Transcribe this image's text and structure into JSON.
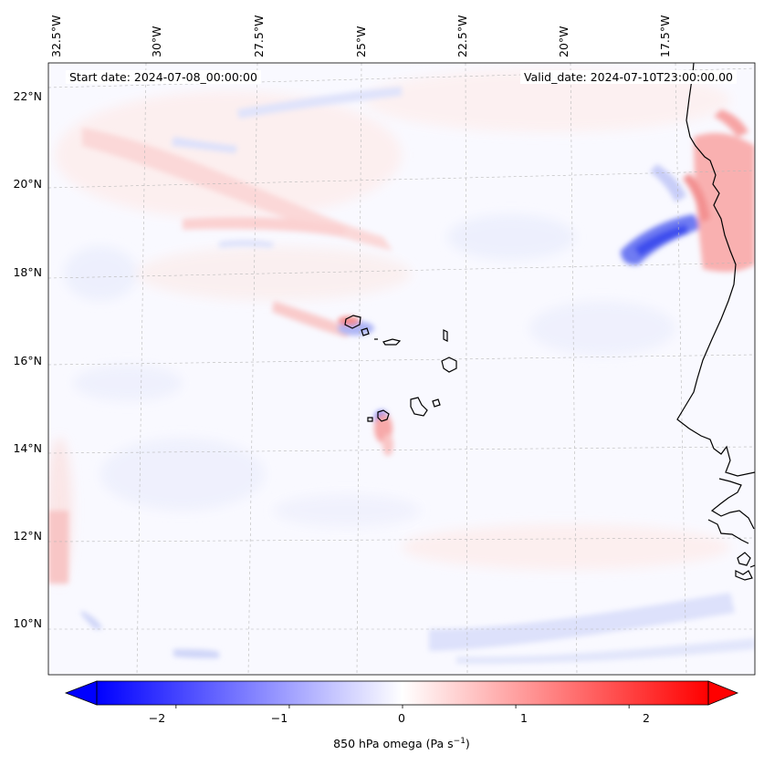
{
  "header": {
    "start_date": "Start date: 2024-07-08_00:00:00",
    "valid_date": "Valid_date: 2024-07-10T23:00:00.00"
  },
  "map": {
    "lon_labels": [
      "32.5°W",
      "30°W",
      "27.5°W",
      "25°W",
      "22.5°W",
      "20°W",
      "17.5°W"
    ],
    "lat_labels": [
      "22°N",
      "20°N",
      "18°N",
      "16°N",
      "14°N",
      "12°N",
      "10°N"
    ],
    "variable": "850 hPa omega",
    "units": "Pa s",
    "units_exponent": "−1"
  },
  "colorbar": {
    "ticks": [
      "−2",
      "−1",
      "0",
      "1",
      "2"
    ],
    "min": -2.7,
    "max": 2.7,
    "colors": {
      "negative": "#0000ff",
      "neutral": "#ffffff",
      "positive": "#ff0000"
    }
  }
}
